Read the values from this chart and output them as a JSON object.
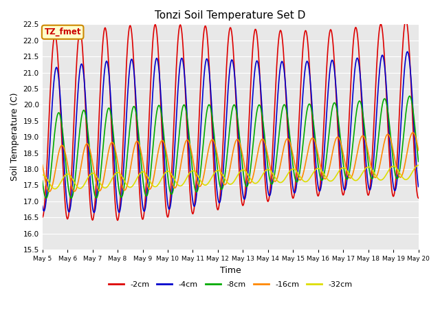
{
  "title": "Tonzi Soil Temperature Set D",
  "xlabel": "Time",
  "ylabel": "Soil Temperature (C)",
  "ylim": [
    15.5,
    22.5
  ],
  "bg_color": "#e8e8e8",
  "fig_color": "#ffffff",
  "legend_label": "TZ_fmet",
  "series_colors": {
    "-2cm": "#dd0000",
    "-4cm": "#0000cc",
    "-8cm": "#00aa00",
    "-16cm": "#ff8800",
    "-32cm": "#dddd00"
  },
  "start_day": 5,
  "end_day": 20,
  "n_points": 720,
  "series_params": {
    "-2cm": {
      "base": 19.3,
      "amp": 2.8,
      "phase": 0.0,
      "lag": 0.0,
      "trend": 0.04
    },
    "-4cm": {
      "base": 18.9,
      "amp": 2.2,
      "phase": 0.0,
      "lag": 0.06,
      "trend": 0.04
    },
    "-8cm": {
      "base": 18.4,
      "amp": 1.3,
      "phase": 0.0,
      "lag": 0.15,
      "trend": 0.04
    },
    "-16cm": {
      "base": 18.0,
      "amp": 0.7,
      "phase": 0.0,
      "lag": 0.28,
      "trend": 0.03
    },
    "-32cm": {
      "base": 17.6,
      "amp": 0.22,
      "phase": 0.0,
      "lag": 0.5,
      "trend": 0.02
    }
  },
  "xtick_labels": [
    "May 5",
    "May 6",
    "May 7",
    "May 8",
    "May 9",
    "May 10",
    "May 11",
    "May 12",
    "May 13",
    "May 14",
    "May 15",
    "May 16",
    "May 17",
    "May 18",
    "May 19",
    "May 20"
  ],
  "grid_color": "#ffffff",
  "line_width": 1.2
}
